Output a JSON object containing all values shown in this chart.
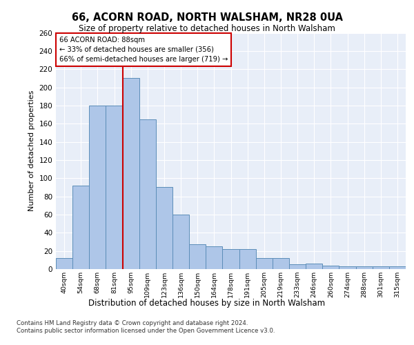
{
  "title_line1": "66, ACORN ROAD, NORTH WALSHAM, NR28 0UA",
  "title_line2": "Size of property relative to detached houses in North Walsham",
  "xlabel": "Distribution of detached houses by size in North Walsham",
  "ylabel": "Number of detached properties",
  "categories": [
    "40sqm",
    "54sqm",
    "68sqm",
    "81sqm",
    "95sqm",
    "109sqm",
    "123sqm",
    "136sqm",
    "150sqm",
    "164sqm",
    "178sqm",
    "191sqm",
    "205sqm",
    "219sqm",
    "233sqm",
    "246sqm",
    "260sqm",
    "274sqm",
    "288sqm",
    "301sqm",
    "315sqm"
  ],
  "values": [
    12,
    92,
    180,
    180,
    210,
    165,
    90,
    60,
    27,
    25,
    22,
    22,
    12,
    12,
    5,
    6,
    4,
    3,
    3,
    3,
    3
  ],
  "bar_color": "#aec6e8",
  "bar_edge_color": "#5b8db8",
  "red_line_x": 3.5,
  "annotation_title": "66 ACORN ROAD: 88sqm",
  "annotation_line1": "← 33% of detached houses are smaller (356)",
  "annotation_line2": "66% of semi-detached houses are larger (719) →",
  "annotation_box_color": "#ffffff",
  "annotation_box_edge": "#cc0000",
  "red_line_color": "#cc0000",
  "ylim": [
    0,
    260
  ],
  "yticks": [
    0,
    20,
    40,
    60,
    80,
    100,
    120,
    140,
    160,
    180,
    200,
    220,
    240,
    260
  ],
  "footer_line1": "Contains HM Land Registry data © Crown copyright and database right 2024.",
  "footer_line2": "Contains public sector information licensed under the Open Government Licence v3.0.",
  "background_color": "#e8eef8"
}
